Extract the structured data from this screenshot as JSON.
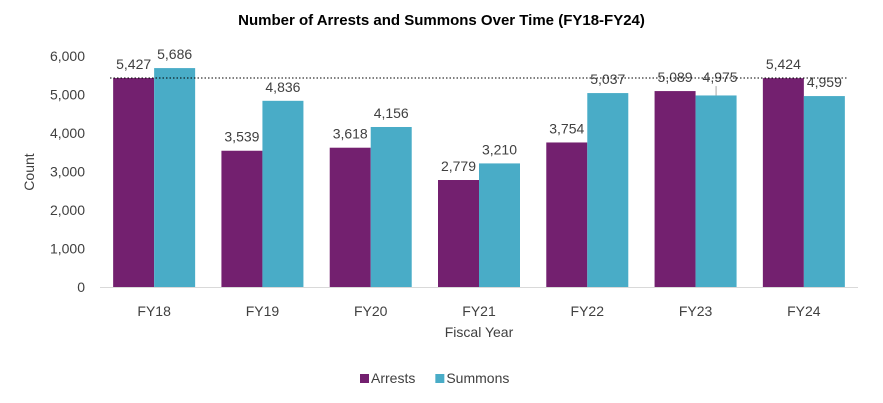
{
  "chart_data": {
    "type": "bar",
    "title": "Number of Arrests and Summons Over Time (FY18-FY24)",
    "xlabel": "Fiscal Year",
    "ylabel": "Count",
    "categories": [
      "FY18",
      "FY19",
      "FY20",
      "FY21",
      "FY22",
      "FY23",
      "FY24"
    ],
    "series": [
      {
        "name": "Arrests",
        "color": "#73206f",
        "values": [
          5427,
          3539,
          3618,
          2779,
          3754,
          5089,
          5424
        ],
        "labels": [
          "5,427",
          "3,539",
          "3,618",
          "2,779",
          "3,754",
          "5,089",
          "5,424"
        ]
      },
      {
        "name": "Summons",
        "color": "#49acc7",
        "values": [
          5686,
          4836,
          4156,
          3210,
          5037,
          4975,
          4959
        ],
        "labels": [
          "5,686",
          "4,836",
          "4,156",
          "3,210",
          "5,037",
          "4,975",
          "4,959"
        ]
      }
    ],
    "ylim": [
      0,
      6000
    ],
    "yticks": [
      0,
      1000,
      2000,
      3000,
      4000,
      5000,
      6000
    ],
    "ytick_labels": [
      "0",
      "1,000",
      "2,000",
      "3,000",
      "4,000",
      "5,000",
      "6,000"
    ],
    "reference_line": {
      "value": 5427,
      "style": "dotted"
    },
    "grid": false,
    "legend_position": "bottom"
  }
}
